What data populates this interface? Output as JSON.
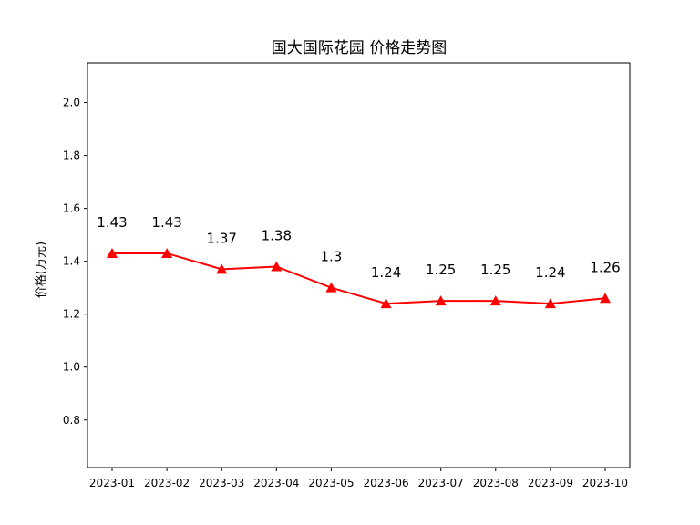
{
  "chart_data": {
    "type": "line",
    "title": "国大国际花园 价格走势图",
    "xlabel": "",
    "ylabel": "价格(万元)",
    "categories": [
      "2023-01",
      "2023-02",
      "2023-03",
      "2023-04",
      "2023-05",
      "2023-06",
      "2023-07",
      "2023-08",
      "2023-09",
      "2023-10"
    ],
    "series": [
      {
        "values": [
          1.43,
          1.43,
          1.37,
          1.38,
          1.3,
          1.24,
          1.25,
          1.25,
          1.24,
          1.26
        ],
        "labels": [
          "1.43",
          "1.43",
          "1.37",
          "1.38",
          "1.3",
          "1.24",
          "1.25",
          "1.25",
          "1.24",
          "1.26"
        ],
        "color": "#ff0000",
        "marker": "triangle"
      }
    ],
    "ylim": [
      0.62,
      2.15
    ],
    "yticks": [
      "0.8",
      "1.0",
      "1.2",
      "1.4",
      "1.6",
      "1.8",
      "2.0"
    ],
    "grid": false,
    "legend": "none"
  }
}
